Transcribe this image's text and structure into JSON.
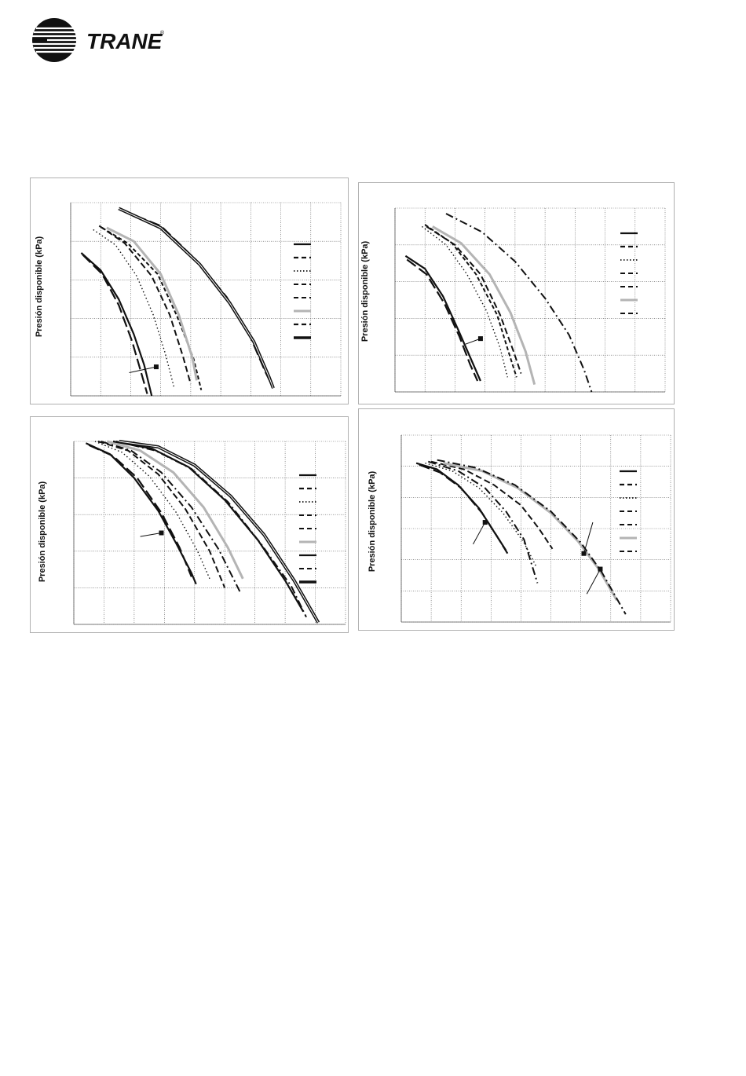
{
  "brand": {
    "name": "TRANE",
    "registered": "®"
  },
  "colors": {
    "ink": "#111111",
    "grid": "#555555",
    "gray_series": "#b4b4b4",
    "frame": "#b0b0b0"
  },
  "chart_data": [
    {
      "type": "line",
      "ylabel": "Presión disponible (kPa)",
      "grid": true,
      "gridlines": {
        "x": 9,
        "y": 5
      },
      "xlim": [
        0,
        9
      ],
      "ylim": [
        0,
        5
      ],
      "legend": "right",
      "series": [
        {
          "style": "solid",
          "points": [
            [
              0.35,
              3.7
            ],
            [
              1.0,
              3.25
            ],
            [
              1.6,
              2.5
            ],
            [
              2.1,
              1.6
            ],
            [
              2.45,
              0.8
            ],
            [
              2.7,
              0
            ]
          ]
        },
        {
          "style": "longdash",
          "points": [
            [
              0.4,
              3.65
            ],
            [
              1.05,
              3.15
            ],
            [
              1.6,
              2.35
            ],
            [
              2.05,
              1.4
            ],
            [
              2.35,
              0.6
            ],
            [
              2.55,
              0.05
            ]
          ]
        },
        {
          "style": "dotted",
          "points": [
            [
              0.75,
              4.3
            ],
            [
              1.5,
              3.9
            ],
            [
              2.2,
              3.1
            ],
            [
              2.75,
              2.1
            ],
            [
              3.15,
              1.1
            ],
            [
              3.45,
              0.2
            ]
          ]
        },
        {
          "style": "dash",
          "points": [
            [
              0.95,
              4.4
            ],
            [
              1.8,
              3.95
            ],
            [
              2.7,
              3.1
            ],
            [
              3.3,
              2.1
            ],
            [
              3.75,
              1.0
            ],
            [
              4.0,
              0.3
            ]
          ]
        },
        {
          "style": "shortdash",
          "points": [
            [
              1.05,
              4.35
            ],
            [
              1.9,
              3.95
            ],
            [
              2.9,
              3.15
            ],
            [
              3.55,
              2.05
            ],
            [
              4.1,
              0.95
            ],
            [
              4.35,
              0.15
            ]
          ]
        },
        {
          "style": "gray",
          "points": [
            [
              1.2,
              4.35
            ],
            [
              2.1,
              4.0
            ],
            [
              3.0,
              3.15
            ],
            [
              3.6,
              2.1
            ],
            [
              4.05,
              1.0
            ],
            [
              4.2,
              0.4
            ]
          ]
        },
        {
          "style": "longdash",
          "points": [
            [
              1.7,
              4.8
            ],
            [
              3.0,
              4.4
            ],
            [
              4.2,
              3.5
            ],
            [
              5.2,
              2.55
            ],
            [
              6.0,
              1.5
            ],
            [
              6.5,
              0.6
            ],
            [
              6.75,
              0.2
            ]
          ]
        },
        {
          "style": "double",
          "points": [
            [
              1.6,
              4.85
            ],
            [
              3.0,
              4.35
            ],
            [
              4.3,
              3.4
            ],
            [
              5.3,
              2.4
            ],
            [
              6.1,
              1.4
            ],
            [
              6.6,
              0.5
            ],
            [
              6.75,
              0.2
            ]
          ]
        }
      ],
      "annotations": [
        {
          "type": "arrow",
          "from": [
            1.95,
            0.6
          ],
          "to": [
            2.85,
            0.75
          ]
        }
      ]
    },
    {
      "type": "line",
      "ylabel": "Presión disponible (kPa)",
      "grid": true,
      "gridlines": {
        "x": 9,
        "y": 5
      },
      "xlim": [
        0,
        9
      ],
      "ylim": [
        0,
        5
      ],
      "legend": "right",
      "series": [
        {
          "style": "solid",
          "points": [
            [
              0.35,
              3.7
            ],
            [
              1.0,
              3.35
            ],
            [
              1.6,
              2.6
            ],
            [
              2.1,
              1.7
            ],
            [
              2.5,
              0.95
            ],
            [
              2.85,
              0.3
            ]
          ]
        },
        {
          "style": "longdash",
          "points": [
            [
              0.4,
              3.6
            ],
            [
              1.05,
              3.2
            ],
            [
              1.65,
              2.4
            ],
            [
              2.15,
              1.5
            ],
            [
              2.5,
              0.75
            ],
            [
              2.75,
              0.3
            ]
          ]
        },
        {
          "style": "dotted",
          "points": [
            [
              0.9,
              4.5
            ],
            [
              1.7,
              4.0
            ],
            [
              2.4,
              3.2
            ],
            [
              3.05,
              2.2
            ],
            [
              3.5,
              1.2
            ],
            [
              3.75,
              0.4
            ]
          ]
        },
        {
          "style": "shortdash",
          "points": [
            [
              1.0,
              4.55
            ],
            [
              1.9,
              4.05
            ],
            [
              2.7,
              3.2
            ],
            [
              3.4,
              2.1
            ],
            [
              3.8,
              1.05
            ],
            [
              4.05,
              0.4
            ]
          ]
        },
        {
          "style": "dash",
          "points": [
            [
              1.05,
              4.5
            ],
            [
              2.0,
              4.0
            ],
            [
              2.85,
              3.2
            ],
            [
              3.5,
              2.1
            ],
            [
              3.95,
              1.1
            ],
            [
              4.2,
              0.5
            ]
          ]
        },
        {
          "style": "gray",
          "points": [
            [
              1.25,
              4.5
            ],
            [
              2.2,
              4.05
            ],
            [
              3.15,
              3.2
            ],
            [
              3.85,
              2.15
            ],
            [
              4.35,
              1.1
            ],
            [
              4.65,
              0.2
            ]
          ]
        },
        {
          "style": "dashdot",
          "points": [
            [
              1.7,
              4.85
            ],
            [
              2.9,
              4.35
            ],
            [
              4.0,
              3.55
            ],
            [
              5.0,
              2.55
            ],
            [
              5.8,
              1.55
            ],
            [
              6.3,
              0.6
            ],
            [
              6.55,
              0
            ]
          ]
        }
      ],
      "annotations": [
        {
          "type": "arrow",
          "from": [
            2.35,
            1.3
          ],
          "to": [
            2.85,
            1.45
          ]
        }
      ]
    },
    {
      "type": "line",
      "ylabel": "Presión disponible (kPa)",
      "grid": true,
      "gridlines": {
        "x": 9,
        "y": 5
      },
      "xlim": [
        0,
        9
      ],
      "ylim": [
        0,
        5
      ],
      "legend": "right",
      "series": [
        {
          "style": "solid",
          "points": [
            [
              0.4,
              4.95
            ],
            [
              1.2,
              4.65
            ],
            [
              2.0,
              4.0
            ],
            [
              2.8,
              3.1
            ],
            [
              3.4,
              2.2
            ],
            [
              3.9,
              1.4
            ],
            [
              4.05,
              1.1
            ]
          ]
        },
        {
          "style": "longdash",
          "points": [
            [
              0.5,
              4.9
            ],
            [
              1.3,
              4.6
            ],
            [
              2.1,
              4.0
            ],
            [
              2.9,
              3.05
            ],
            [
              3.5,
              2.1
            ],
            [
              3.9,
              1.3
            ]
          ]
        },
        {
          "style": "dotted",
          "points": [
            [
              0.7,
              5.0
            ],
            [
              1.6,
              4.7
            ],
            [
              2.5,
              4.05
            ],
            [
              3.4,
              3.05
            ],
            [
              4.1,
              2.0
            ],
            [
              4.5,
              1.25
            ]
          ]
        },
        {
          "style": "dash",
          "points": [
            [
              0.8,
              5.0
            ],
            [
              1.8,
              4.75
            ],
            [
              2.8,
              4.1
            ],
            [
              3.7,
              3.15
            ],
            [
              4.5,
              2.0
            ],
            [
              5.0,
              1.0
            ]
          ]
        },
        {
          "style": "dashdot",
          "points": [
            [
              0.9,
              5.0
            ],
            [
              1.9,
              4.75
            ],
            [
              2.9,
              4.15
            ],
            [
              3.9,
              3.2
            ],
            [
              4.8,
              2.05
            ],
            [
              5.5,
              0.9
            ]
          ]
        },
        {
          "style": "gray",
          "points": [
            [
              1.1,
              5.0
            ],
            [
              2.2,
              4.75
            ],
            [
              3.3,
              4.15
            ],
            [
              4.3,
              3.2
            ],
            [
              5.1,
              2.1
            ],
            [
              5.6,
              1.25
            ]
          ]
        },
        {
          "style": "solid",
          "points": [
            [
              1.3,
              5.0
            ],
            [
              2.6,
              4.8
            ],
            [
              3.8,
              4.3
            ],
            [
              5.0,
              3.4
            ],
            [
              6.1,
              2.3
            ],
            [
              7.0,
              1.2
            ],
            [
              7.6,
              0.35
            ]
          ]
        },
        {
          "style": "dashdot",
          "points": [
            [
              1.4,
              5.0
            ],
            [
              2.7,
              4.75
            ],
            [
              3.9,
              4.25
            ],
            [
              5.1,
              3.35
            ],
            [
              6.2,
              2.2
            ],
            [
              7.2,
              1.05
            ],
            [
              7.7,
              0.2
            ]
          ]
        },
        {
          "style": "double",
          "points": [
            [
              1.5,
              5.0
            ],
            [
              2.8,
              4.85
            ],
            [
              4.0,
              4.35
            ],
            [
              5.2,
              3.5
            ],
            [
              6.3,
              2.45
            ],
            [
              7.3,
              1.2
            ],
            [
              8.1,
              0.05
            ]
          ]
        }
      ],
      "annotations": [
        {
          "type": "arrow",
          "from": [
            2.2,
            2.4
          ],
          "to": [
            2.9,
            2.5
          ]
        }
      ]
    },
    {
      "type": "line",
      "ylabel": "Presión disponible (kPa)",
      "grid": true,
      "gridlines": {
        "x": 9,
        "y": 6
      },
      "xlim": [
        0,
        9
      ],
      "ylim": [
        0,
        6
      ],
      "legend": "right",
      "series": [
        {
          "style": "solid",
          "points": [
            [
              0.5,
              5.1
            ],
            [
              1.2,
              4.9
            ],
            [
              1.9,
              4.4
            ],
            [
              2.6,
              3.65
            ],
            [
              3.1,
              2.9
            ],
            [
              3.5,
              2.3
            ]
          ]
        },
        {
          "style": "longdash",
          "points": [
            [
              0.6,
              5.05
            ],
            [
              1.3,
              4.8
            ],
            [
              2.0,
              4.3
            ],
            [
              2.7,
              3.5
            ],
            [
              3.2,
              2.75
            ],
            [
              3.55,
              2.2
            ]
          ]
        },
        {
          "style": "dotted",
          "points": [
            [
              0.8,
              5.1
            ],
            [
              1.7,
              4.85
            ],
            [
              2.6,
              4.3
            ],
            [
              3.4,
              3.5
            ],
            [
              4.1,
              2.55
            ],
            [
              4.5,
              1.8
            ]
          ]
        },
        {
          "style": "dashdot",
          "points": [
            [
              0.9,
              5.15
            ],
            [
              1.9,
              4.85
            ],
            [
              2.8,
              4.3
            ],
            [
              3.5,
              3.55
            ],
            [
              4.1,
              2.65
            ],
            [
              4.55,
              1.25
            ]
          ]
        },
        {
          "style": "dash",
          "points": [
            [
              1.0,
              5.15
            ],
            [
              2.1,
              4.9
            ],
            [
              3.1,
              4.4
            ],
            [
              4.0,
              3.75
            ],
            [
              4.6,
              3.0
            ],
            [
              5.05,
              2.35
            ]
          ]
        },
        {
          "style": "gray",
          "points": [
            [
              1.4,
              5.1
            ],
            [
              2.7,
              4.85
            ],
            [
              3.9,
              4.3
            ],
            [
              5.0,
              3.5
            ],
            [
              5.9,
              2.6
            ],
            [
              6.6,
              1.7
            ],
            [
              7.2,
              0.7
            ]
          ]
        },
        {
          "style": "dashdot",
          "points": [
            [
              1.2,
              5.2
            ],
            [
              2.5,
              4.95
            ],
            [
              3.8,
              4.4
            ],
            [
              5.0,
              3.55
            ],
            [
              6.0,
              2.55
            ],
            [
              6.7,
              1.6
            ],
            [
              7.5,
              0.25
            ]
          ]
        }
      ],
      "annotations": [
        {
          "type": "arrow",
          "from": [
            2.4,
            2.5
          ],
          "to": [
            2.8,
            3.2
          ]
        },
        {
          "type": "arrow",
          "from": [
            6.4,
            3.2
          ],
          "to": [
            6.1,
            2.2
          ]
        },
        {
          "type": "arrow",
          "from": [
            6.2,
            0.9
          ],
          "to": [
            6.65,
            1.7
          ]
        }
      ]
    }
  ]
}
